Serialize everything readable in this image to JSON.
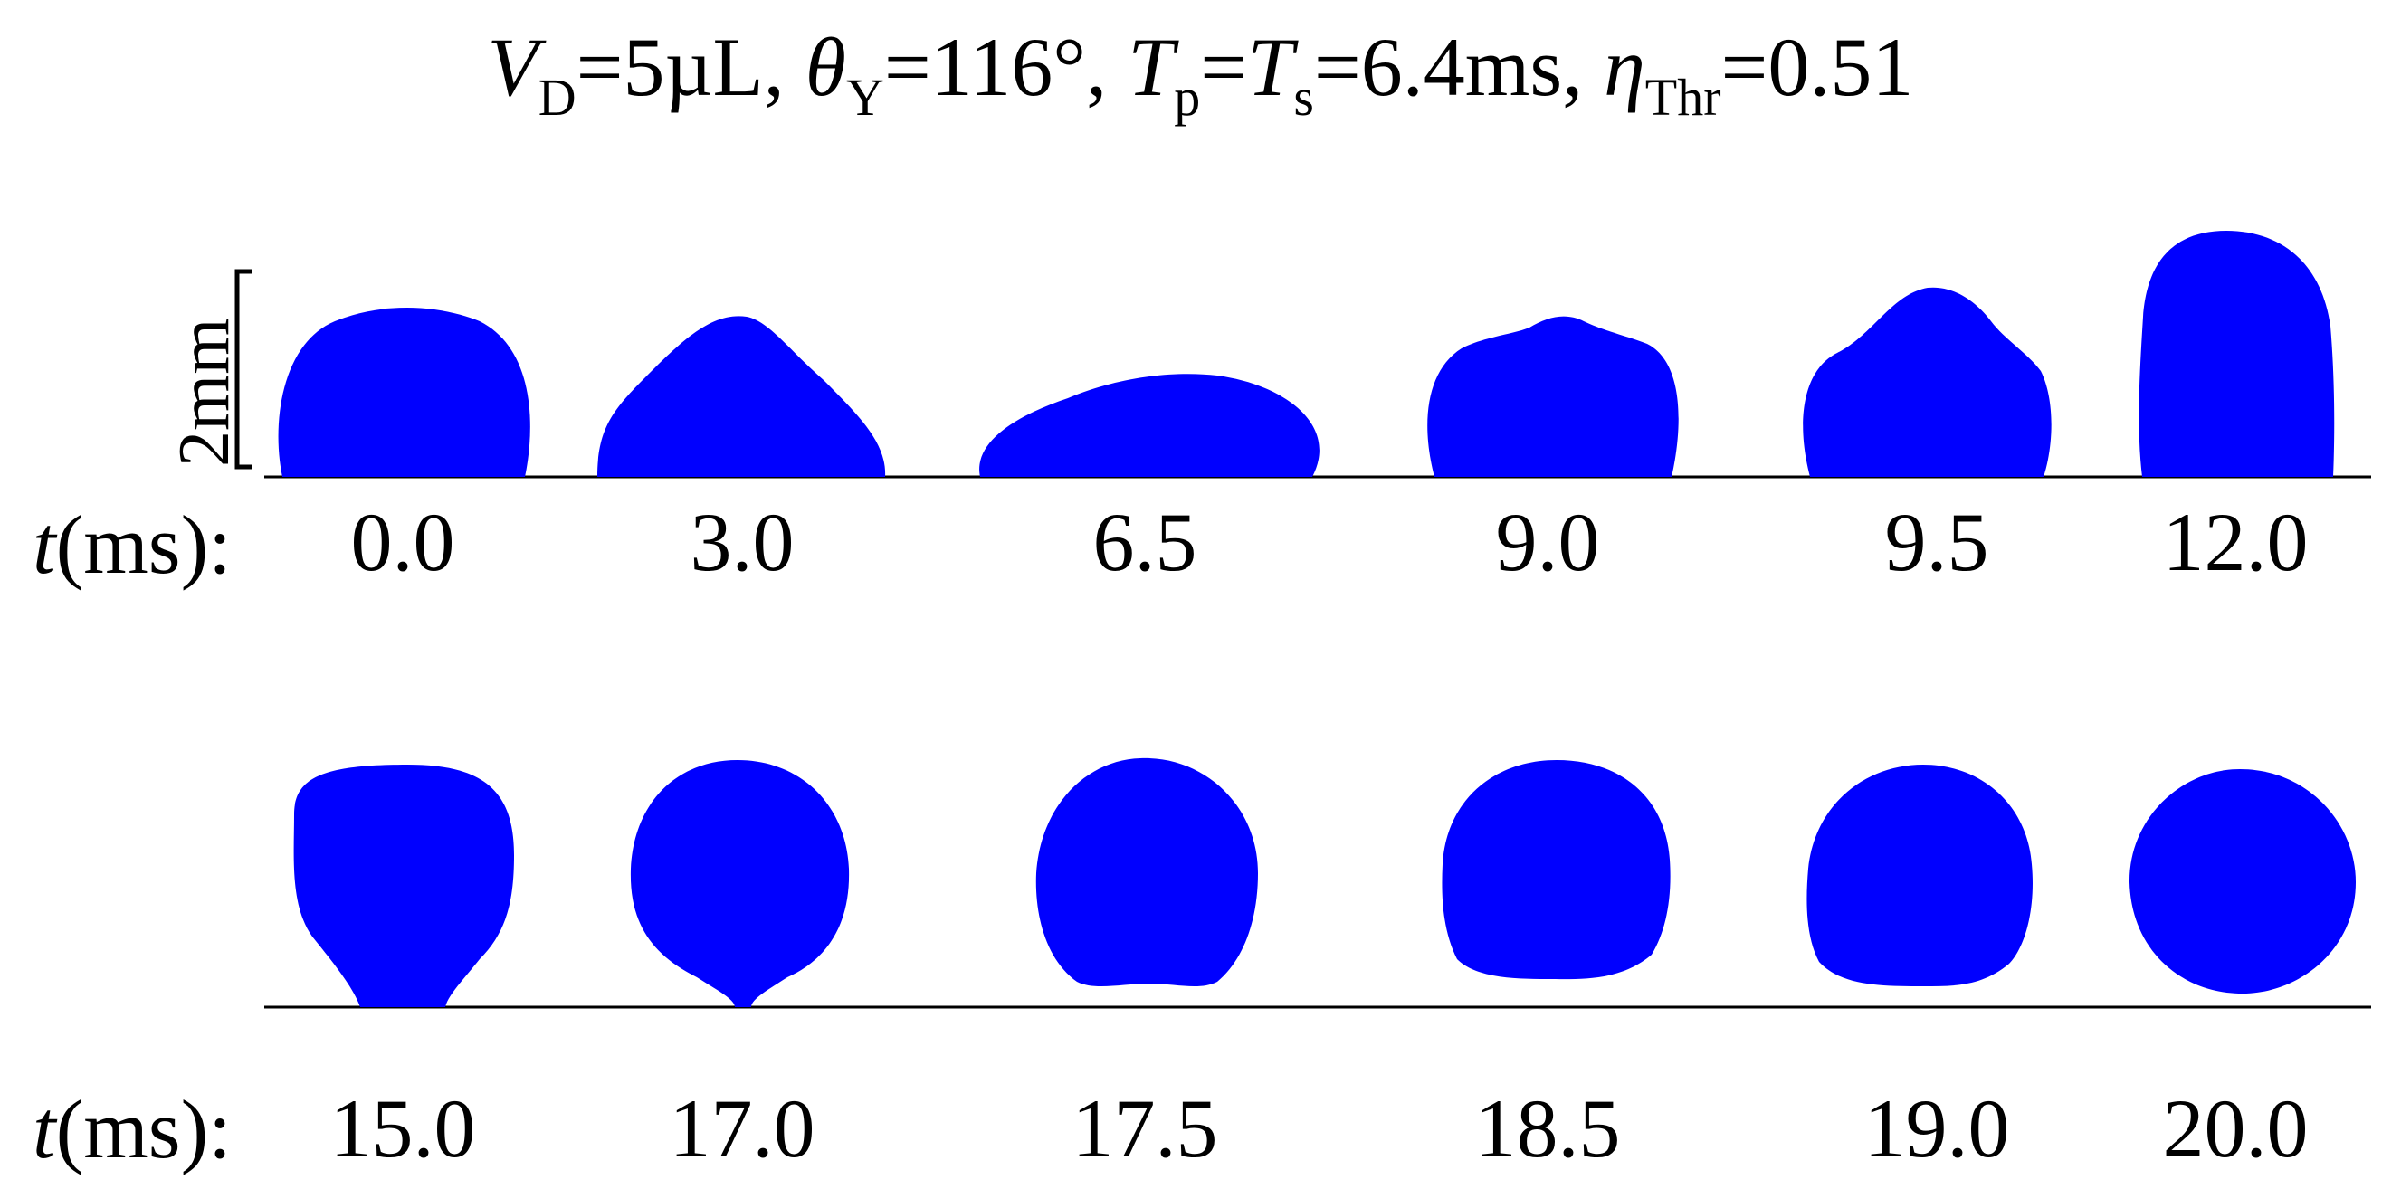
{
  "title": {
    "v_sym": "V",
    "v_sub": "D",
    "v_val": "=5µL, ",
    "th_sym": "θ",
    "th_sub": "Y",
    "th_val": "=116°, ",
    "tp_sym": "T",
    "tp_sub": "p",
    "tp_eq": "=",
    "ts_sym": "T",
    "ts_sub": "s",
    "ts_val": "=6.4ms, ",
    "eta_sym": "η",
    "eta_sub": "Thr",
    "eta_val": "=0.51"
  },
  "row_label": {
    "t_sym": "t",
    "t_unit": "(ms):"
  },
  "scale_bar_label": "2mm",
  "drop_color": "#0000ff",
  "rows": [
    {
      "frames": [
        {
          "time": "0.0",
          "shape": "cap"
        },
        {
          "time": "3.0",
          "shape": "peaked-cap"
        },
        {
          "time": "6.5",
          "shape": "flattened-lens"
        },
        {
          "time": "9.0",
          "shape": "rippled-cap"
        },
        {
          "time": "9.5",
          "shape": "double-peaked-cap"
        },
        {
          "time": "12.0",
          "shape": "elongated-column"
        }
      ]
    },
    {
      "frames": [
        {
          "time": "15.0",
          "shape": "necked-drop"
        },
        {
          "time": "17.0",
          "shape": "pinching-drop"
        },
        {
          "time": "17.5",
          "shape": "near-sphere"
        },
        {
          "time": "18.5",
          "shape": "flattened-sphere"
        },
        {
          "time": "19.0",
          "shape": "sphere"
        },
        {
          "time": "20.0",
          "shape": "oblate-sphere"
        }
      ]
    }
  ]
}
